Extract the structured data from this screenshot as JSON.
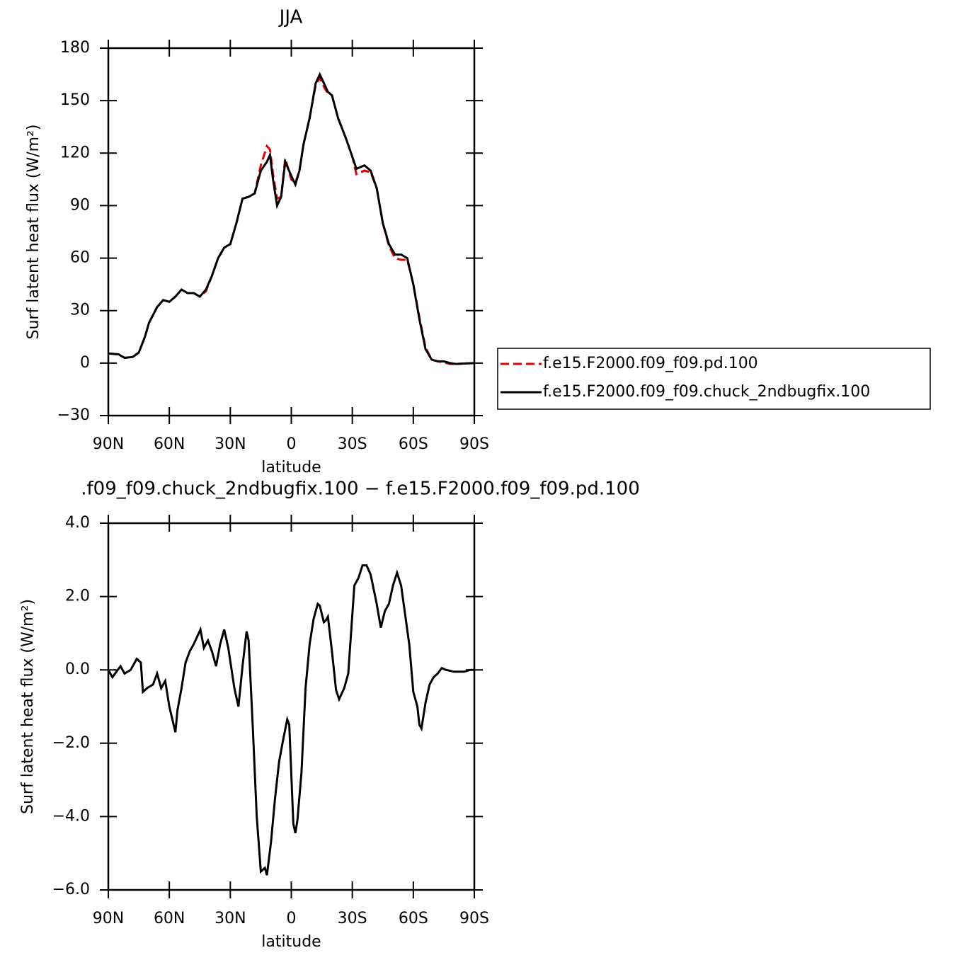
{
  "chart_data": [
    {
      "type": "line",
      "title": "JJA",
      "xlabel": "latitude",
      "ylabel": "Surf latent heat flux (W/m²)",
      "xlim": [
        90,
        -90
      ],
      "xticks": [
        {
          "value": 90,
          "label": "90N"
        },
        {
          "value": 60,
          "label": "60N"
        },
        {
          "value": 30,
          "label": "30N"
        },
        0,
        {
          "value": -30,
          "label": "30S"
        },
        {
          "value": -60,
          "label": "60S"
        },
        {
          "value": -90,
          "label": "90S"
        }
      ],
      "ylim": [
        -30,
        180
      ],
      "yticks": [
        {
          "value": -30,
          "label": "−30"
        },
        0,
        30,
        60,
        90,
        120,
        150,
        180
      ],
      "legend": "right",
      "x": [
        90,
        85,
        82,
        78,
        75,
        72,
        70,
        66,
        63,
        60,
        57,
        54,
        51,
        48,
        45,
        42,
        39,
        36,
        33,
        30,
        27,
        24,
        21,
        18,
        15,
        12,
        10.5,
        9,
        7,
        5,
        3,
        0,
        -2,
        -4,
        -6,
        -9,
        -12,
        -14,
        -16,
        -18,
        -20,
        -23,
        -27,
        -30,
        -32,
        -34,
        -36,
        -39,
        -42,
        -45,
        -48,
        -51,
        -54,
        -57,
        -60,
        -63,
        -66,
        -69,
        -72,
        -75,
        -78,
        -81,
        -84,
        -90
      ],
      "series": [
        {
          "name": "f.e15.F2000.f09_f09.pd.100",
          "color": "#e00000",
          "style": "dashed",
          "values": [
            5.5,
            5,
            3,
            3.5,
            6,
            15,
            23,
            32,
            36,
            35,
            38,
            42,
            40,
            40,
            38,
            41,
            50,
            60,
            66,
            68,
            80,
            94,
            95,
            97,
            113,
            124,
            122,
            108,
            94,
            95,
            117,
            105,
            103,
            110,
            125,
            140,
            159,
            163,
            158,
            154,
            153,
            140,
            128,
            118,
            108,
            109,
            110,
            109,
            100,
            80,
            67,
            60,
            59,
            59,
            45,
            26,
            9,
            2,
            1,
            0.5,
            -0.5,
            -0.5,
            -0.3,
            0
          ]
        },
        {
          "name": "f.e15.F2000.f09_f09.chuck_2ndbugfix.100",
          "color": "#000000",
          "style": "solid",
          "values": [
            5.5,
            5,
            3,
            3.5,
            6,
            15,
            23,
            32,
            36,
            35,
            38,
            42,
            40,
            40,
            38,
            42,
            50,
            60,
            66,
            68,
            80,
            94,
            95,
            97,
            110,
            115,
            119,
            105,
            90,
            95,
            115,
            107,
            102,
            110,
            125,
            140,
            160,
            165,
            160,
            155,
            153,
            140,
            128,
            118,
            111,
            112,
            113,
            110,
            100,
            80,
            68,
            62,
            62,
            60,
            45,
            25,
            8,
            2,
            1,
            1,
            0,
            -0.5,
            -0.3,
            0
          ]
        }
      ]
    },
    {
      "type": "line",
      "title": ".f09_f09.chuck_2ndbugfix.100 − f.e15.F2000.f09_f09.pd.100",
      "xlabel": "latitude",
      "ylabel": "Surf latent heat flux (W/m²)",
      "xlim": [
        90,
        -90
      ],
      "xticks": [
        {
          "value": 90,
          "label": "90N"
        },
        {
          "value": 60,
          "label": "60N"
        },
        {
          "value": 30,
          "label": "30N"
        },
        0,
        {
          "value": -30,
          "label": "30S"
        },
        {
          "value": -60,
          "label": "60S"
        },
        {
          "value": -90,
          "label": "90S"
        }
      ],
      "ylim": [
        -6,
        4
      ],
      "yticks": [
        {
          "value": -6,
          "label": "−6.0"
        },
        {
          "value": -4,
          "label": "−4.0"
        },
        {
          "value": -2,
          "label": "−2.0"
        },
        {
          "value": 0,
          "label": "0.0"
        },
        {
          "value": 2,
          "label": "2.0"
        },
        {
          "value": 4,
          "label": "4.0"
        }
      ],
      "x": [
        90,
        88,
        84,
        82,
        79,
        76,
        74,
        73,
        71,
        68,
        66,
        64,
        62,
        60,
        57,
        56,
        54,
        52,
        50,
        48,
        44.7,
        43,
        41,
        39,
        37,
        35,
        33,
        31,
        28,
        26,
        24,
        22,
        21,
        19,
        17,
        15,
        13,
        12,
        10,
        8,
        6,
        4,
        2,
        1,
        -1,
        -2,
        -3,
        -5,
        -7,
        -9,
        -11,
        -13,
        -14,
        -16,
        -17,
        -18,
        -20,
        -22,
        -23.5,
        -26,
        -28,
        -31,
        -33,
        -35,
        -37,
        -39,
        -42,
        -44,
        -46,
        -48,
        -50,
        -52,
        -54,
        -56,
        -58,
        -60,
        -62,
        -63,
        -64,
        -66,
        -68,
        -70,
        -72,
        -74,
        -76,
        -80,
        -85,
        -88,
        -90
      ],
      "series": [
        {
          "color": "#000000",
          "style": "solid",
          "values": [
            0,
            -0.2,
            0.1,
            -0.1,
            0,
            0.3,
            0.2,
            -0.6,
            -0.5,
            -0.4,
            -0.1,
            -0.5,
            -0.3,
            -1.0,
            -1.7,
            -1.1,
            -0.5,
            0.2,
            0.5,
            0.7,
            1.1,
            0.6,
            0.8,
            0.5,
            0.1,
            0.7,
            1.1,
            0.6,
            -0.5,
            -1.0,
            0.1,
            1.05,
            0.8,
            -1.5,
            -4.0,
            -5.5,
            -5.4,
            -5.6,
            -4.7,
            -3.5,
            -2.5,
            -1.9,
            -1.35,
            -1.5,
            -4.2,
            -4.45,
            -4.1,
            -2.8,
            -0.5,
            0.7,
            1.4,
            1.8,
            1.75,
            1.3,
            1.35,
            1.45,
            0.5,
            -0.55,
            -0.8,
            -0.5,
            -0.1,
            2.3,
            2.5,
            2.85,
            2.85,
            2.6,
            1.8,
            1.15,
            1.6,
            1.8,
            2.3,
            2.65,
            2.3,
            1.5,
            0.7,
            -0.6,
            -1.0,
            -1.5,
            -1.6,
            -0.9,
            -0.4,
            -0.2,
            -0.1,
            0.05,
            0,
            -0.05,
            -0.05,
            0,
            0
          ]
        }
      ]
    }
  ]
}
